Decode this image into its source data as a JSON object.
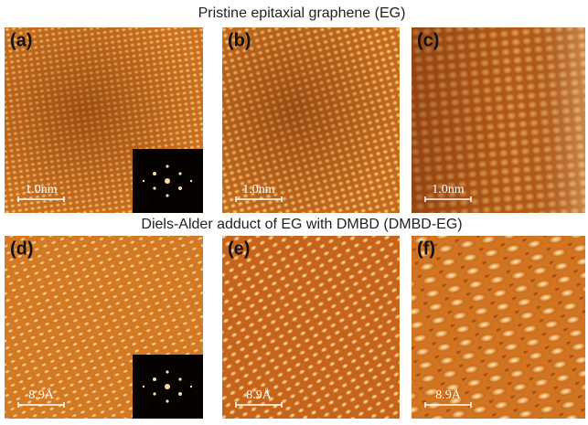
{
  "titles": [
    "Pristine epitaxial graphene (EG)",
    "Diels-Alder adduct of EG with DMBD (DMBD-EG)"
  ],
  "panels": [
    {
      "label": "(a)",
      "scale_bar": "1.0nm"
    },
    {
      "label": "(b)",
      "scale_bar": "1.0nm"
    },
    {
      "label": "(c)",
      "scale_bar": "1.0nm"
    },
    {
      "label": "(d)",
      "scale_bar": "8.9Å"
    },
    {
      "label": "(e)",
      "scale_bar": "8.9Å"
    },
    {
      "label": "(f)",
      "scale_bar": "8.9Å"
    }
  ]
}
